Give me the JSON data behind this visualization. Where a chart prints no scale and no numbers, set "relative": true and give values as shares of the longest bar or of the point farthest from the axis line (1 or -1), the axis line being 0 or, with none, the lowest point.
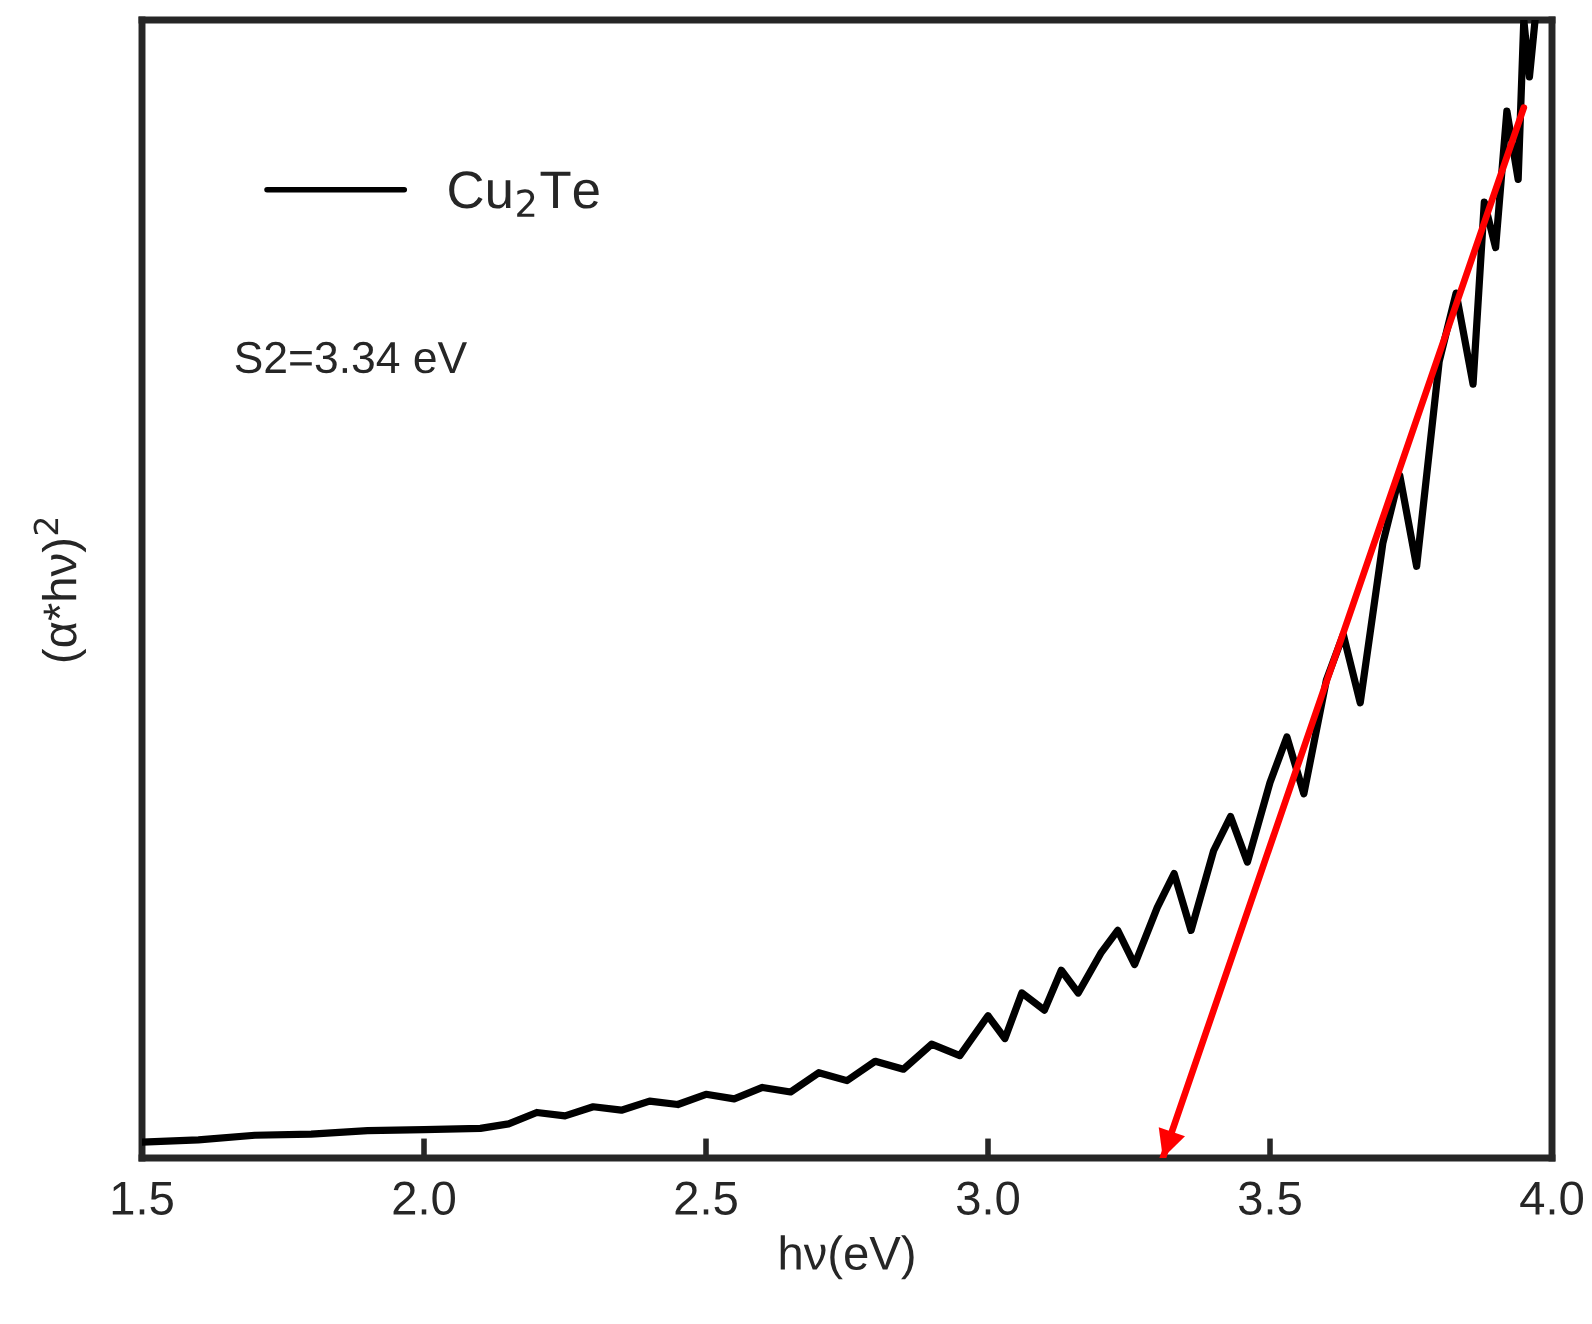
{
  "chart_data": {
    "type": "line",
    "relative": true,
    "xlabel": "hν(eV)",
    "ylabel": "(α*hν)$^{2}$",
    "xlim": [
      1.5,
      4.0
    ],
    "xticks": [
      {
        "value": 1.5,
        "label": "1.5"
      },
      {
        "value": 2.0,
        "label": "2.0"
      },
      {
        "value": 2.5,
        "label": "2.5"
      },
      {
        "value": 3.0,
        "label": "3.0"
      },
      {
        "value": 3.5,
        "label": "3.5"
      },
      {
        "value": 4.0,
        "label": "4.0"
      }
    ],
    "legend": "top left",
    "grid": false,
    "annotations": [
      "S2=3.34 eV"
    ],
    "series": [
      {
        "name": "Cu$_{2}$Te",
        "color": "#000000",
        "x": [
          1.5,
          1.6,
          1.7,
          1.8,
          1.9,
          2.0,
          2.1,
          2.15,
          2.2,
          2.25,
          2.3,
          2.35,
          2.4,
          2.45,
          2.5,
          2.55,
          2.6,
          2.65,
          2.7,
          2.75,
          2.8,
          2.85,
          2.9,
          2.95,
          3.0,
          3.03,
          3.06,
          3.1,
          3.13,
          3.16,
          3.2,
          3.23,
          3.26,
          3.3,
          3.33,
          3.36,
          3.4,
          3.43,
          3.46,
          3.5,
          3.53,
          3.56,
          3.6,
          3.63,
          3.66,
          3.7,
          3.73,
          3.76,
          3.8,
          3.83,
          3.86,
          3.88,
          3.9,
          3.92,
          3.94,
          3.95,
          3.96,
          3.97
        ],
        "values": [
          0.014,
          0.016,
          0.02,
          0.021,
          0.024,
          0.025,
          0.026,
          0.03,
          0.04,
          0.037,
          0.045,
          0.042,
          0.05,
          0.047,
          0.056,
          0.052,
          0.062,
          0.058,
          0.075,
          0.068,
          0.085,
          0.078,
          0.1,
          0.09,
          0.125,
          0.105,
          0.145,
          0.13,
          0.165,
          0.145,
          0.18,
          0.2,
          0.17,
          0.22,
          0.25,
          0.2,
          0.27,
          0.3,
          0.26,
          0.33,
          0.37,
          0.32,
          0.42,
          0.46,
          0.4,
          0.54,
          0.6,
          0.52,
          0.7,
          0.76,
          0.68,
          0.84,
          0.8,
          0.92,
          0.86,
          1.0,
          0.95,
          1.0
        ]
      },
      {
        "type": "line",
        "color": "#ff0000",
        "x": [
          3.95,
          3.31
        ],
        "values": [
          0.923,
          0.0
        ]
      }
    ]
  }
}
